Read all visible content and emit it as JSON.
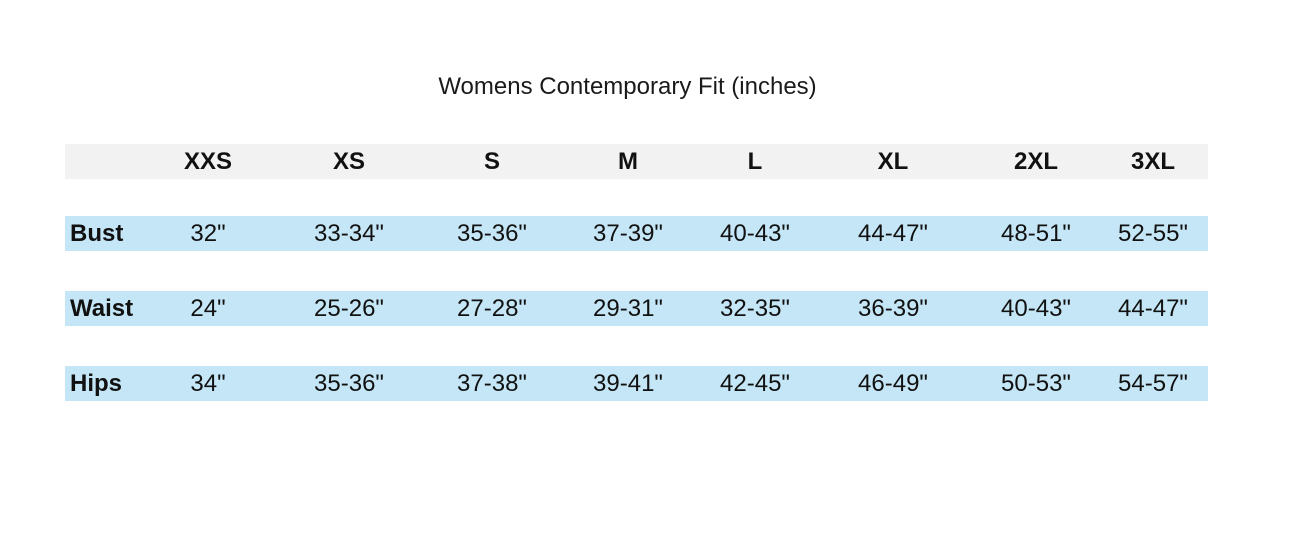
{
  "title": "Womens Contemporary Fit (inches)",
  "colors": {
    "header_band": "#f2f2f2",
    "measure_band": "#c5e6f6"
  },
  "sizes": [
    "XXS",
    "XS",
    "S",
    "M",
    "L",
    "XL",
    "2XL",
    "3XL"
  ],
  "rows": [
    {
      "label": "Bust",
      "values": [
        "32\"",
        "33-34\"",
        "35-36\"",
        "37-39\"",
        "40-43\"",
        "44-47\"",
        "48-51\"",
        "52-55\""
      ]
    },
    {
      "label": "Waist",
      "values": [
        "24\"",
        "25-26\"",
        "27-28\"",
        "29-31\"",
        "32-35\"",
        "36-39\"",
        "40-43\"",
        "44-47\""
      ]
    },
    {
      "label": "Hips",
      "values": [
        "34\"",
        "35-36\"",
        "37-38\"",
        "39-41\"",
        "42-45\"",
        "46-49\"",
        "50-53\"",
        "54-57\""
      ]
    }
  ]
}
